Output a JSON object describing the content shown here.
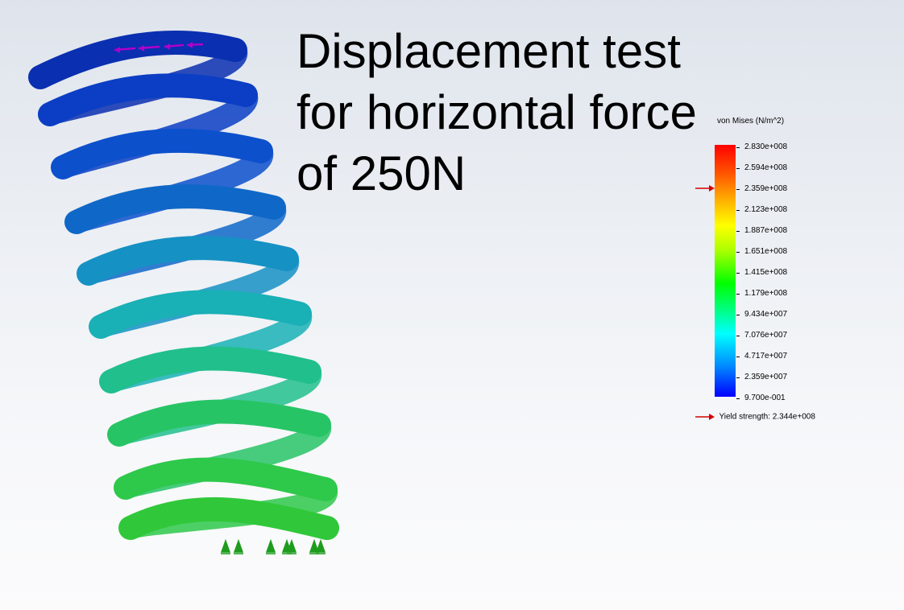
{
  "title_lines": [
    "Displacement test",
    "for horizontal force",
    "of 250N"
  ],
  "legend": {
    "title": "von Mises (N/m^2)",
    "labels": [
      "2.830e+008",
      "2.594e+008",
      "2.359e+008",
      "2.123e+008",
      "1.887e+008",
      "1.651e+008",
      "1.415e+008",
      "1.179e+008",
      "9.434e+007",
      "7.076e+007",
      "4.717e+007",
      "2.359e+007",
      "9.700e-001"
    ],
    "yield_label": "Yield strength: 2.344e+008",
    "arrow_color": "#d40000"
  },
  "colors": {
    "load_arrow": "#b000c8",
    "fixture": "#1f9c1f"
  }
}
